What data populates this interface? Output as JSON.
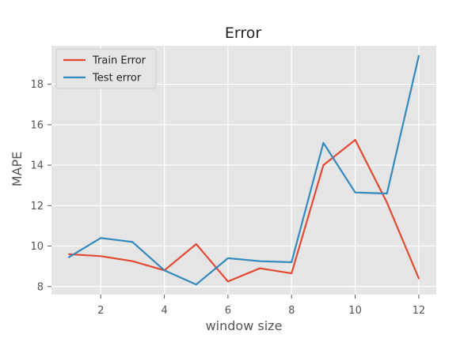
{
  "chart_data": {
    "type": "line",
    "title": "Error",
    "xlabel": "window size",
    "ylabel": "MAPE",
    "x": [
      1,
      2,
      3,
      4,
      5,
      6,
      7,
      8,
      9,
      10,
      11,
      12
    ],
    "xlim": [
      0.45,
      12.55
    ],
    "ylim": [
      7.6,
      19.9
    ],
    "xticks": [
      "2",
      "4",
      "6",
      "8",
      "10",
      "12"
    ],
    "yticks": [
      "8",
      "10",
      "12",
      "14",
      "16",
      "18"
    ],
    "grid": true,
    "legend": "top-left",
    "series": [
      {
        "name": "Train Error",
        "color": "#e24a33",
        "values": [
          9.6,
          9.5,
          9.25,
          8.8,
          10.1,
          8.25,
          8.9,
          8.65,
          14.0,
          15.25,
          12.15,
          8.4
        ]
      },
      {
        "name": "Test error",
        "color": "#348abd",
        "values": [
          9.45,
          10.4,
          10.2,
          8.8,
          8.1,
          9.4,
          9.25,
          9.2,
          15.1,
          12.65,
          12.6,
          19.4
        ]
      }
    ]
  },
  "theme": {
    "plot_background": "#e5e5e5",
    "grid_color": "#ffffff",
    "text_color": "#555555"
  }
}
